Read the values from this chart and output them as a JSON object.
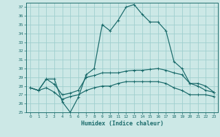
{
  "title": "",
  "xlabel": "Humidex (Indice chaleur)",
  "xlim": [
    -0.5,
    23.5
  ],
  "ylim": [
    25,
    37.5
  ],
  "yticks": [
    25,
    26,
    27,
    28,
    29,
    30,
    31,
    32,
    33,
    34,
    35,
    36,
    37
  ],
  "xticks": [
    0,
    1,
    2,
    3,
    4,
    5,
    6,
    7,
    8,
    9,
    10,
    11,
    12,
    13,
    14,
    15,
    16,
    17,
    18,
    19,
    20,
    21,
    22,
    23
  ],
  "bg_color": "#cce8e6",
  "grid_color": "#9ecece",
  "line_color": "#1a6b6b",
  "line1": [
    27.8,
    27.5,
    28.8,
    28.8,
    26.2,
    25.0,
    26.7,
    29.3,
    30.0,
    35.0,
    34.3,
    35.5,
    37.0,
    37.3,
    36.2,
    35.3,
    35.3,
    34.3,
    30.8,
    30.0,
    28.3,
    28.0,
    27.5,
    27.3
  ],
  "line2": [
    27.8,
    27.5,
    28.8,
    28.2,
    27.0,
    27.2,
    27.5,
    29.0,
    29.2,
    29.5,
    29.5,
    29.5,
    29.7,
    29.8,
    29.8,
    29.9,
    30.0,
    29.8,
    29.5,
    29.3,
    28.3,
    28.3,
    28.0,
    27.3
  ],
  "line3": [
    27.8,
    27.5,
    27.8,
    27.3,
    26.5,
    26.8,
    27.0,
    27.5,
    27.8,
    28.0,
    28.0,
    28.3,
    28.5,
    28.5,
    28.5,
    28.5,
    28.5,
    28.3,
    27.8,
    27.5,
    27.0,
    27.0,
    27.0,
    26.8
  ]
}
